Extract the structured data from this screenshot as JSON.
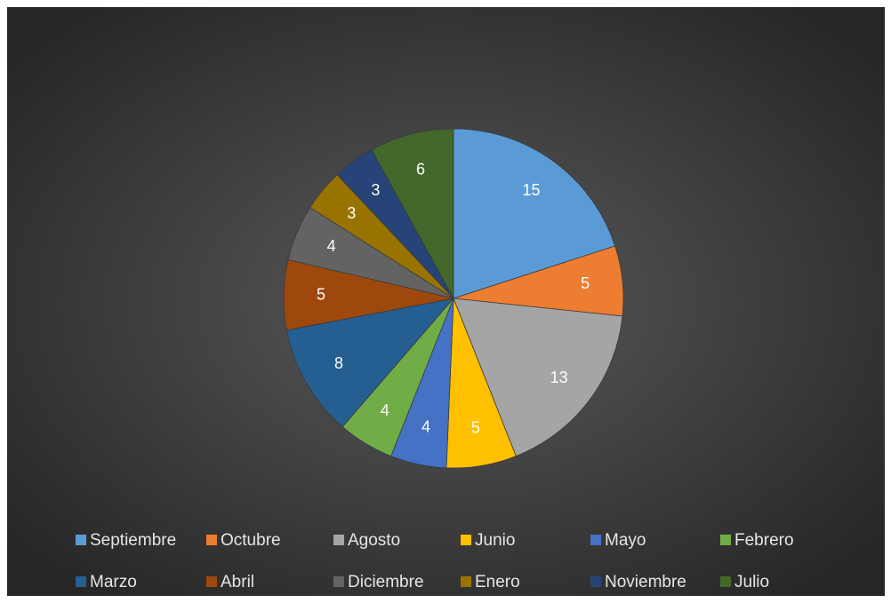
{
  "chart_data": {
    "type": "pie",
    "categories": [
      "Septiembre",
      "Octubre",
      "Agosto",
      "Junio",
      "Mayo",
      "Febrero",
      "Marzo",
      "Abril",
      "Diciembre",
      "Enero",
      "Noviembre",
      "Julio"
    ],
    "values": [
      15,
      5,
      13,
      5,
      4,
      4,
      8,
      5,
      4,
      3,
      3,
      6
    ],
    "colors": [
      "#5b9bd5",
      "#ed7d31",
      "#a5a5a5",
      "#ffc000",
      "#4472c4",
      "#70ad47",
      "#255e91",
      "#9e480e",
      "#636363",
      "#997300",
      "#264478",
      "#43682b"
    ],
    "legend": "bottom"
  }
}
